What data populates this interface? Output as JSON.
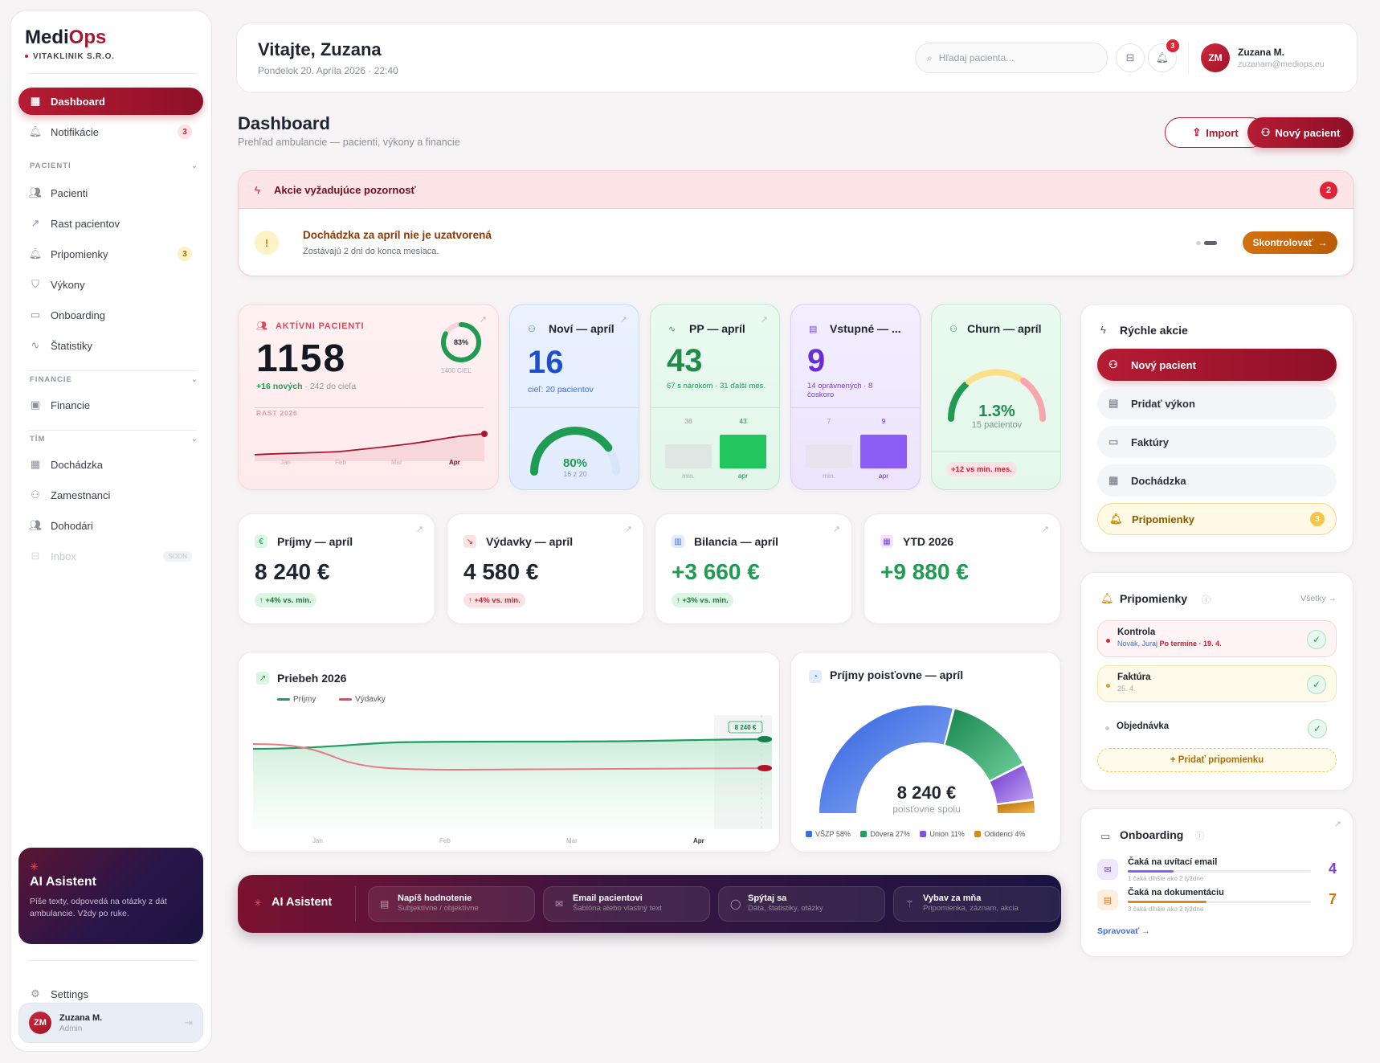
{
  "brand": {
    "name_a": "Medi",
    "name_b": "Ops",
    "org": "VITAKLINIK S.R.O."
  },
  "nav": {
    "dashboard": "Dashboard",
    "notifications": "Notifikácie",
    "notifications_count": "3",
    "sec_patients": "PACIENTI",
    "patients": "Pacienti",
    "growth": "Rast pacientov",
    "reminders": "Pripomienky",
    "reminders_count": "3",
    "services": "Výkony",
    "onboarding": "Onboarding",
    "stats": "Štatistiky",
    "sec_finance": "FINANCIE",
    "finance": "Financie",
    "sec_team": "TÍM",
    "attendance": "Dochádzka",
    "employees": "Zamestnanci",
    "contractors": "Dohodári",
    "inbox": "Inbox",
    "inbox_badge": "SOON",
    "settings": "Settings"
  },
  "ai_side": {
    "title": "AI Asistent",
    "desc": "Píše texty, odpovedá na otázky z dát ambulancie. Vždy po ruke."
  },
  "user": {
    "initials": "ZM",
    "name": "Zuzana M.",
    "role": "Admin",
    "email": "zuzanam@mediops.eu"
  },
  "header": {
    "greeting": "Vitajte, Zuzana",
    "datetime": "Pondelok 20. Apríla 2026 · 22:40",
    "search_placeholder": "Hľadaj pacienta...",
    "bell_count": "3"
  },
  "page": {
    "title": "Dashboard",
    "subtitle": "Prehľad ambulancie — pacienti, výkony a financie",
    "import": "Import",
    "new_patient": "Nový pacient"
  },
  "alert": {
    "title": "Akcie vyžadujúce pozornosť",
    "count": "2",
    "item_title": "Dochádzka za apríl nie je uzatvorená",
    "item_desc": "Zostávajú 2 dni do konca mesiaca.",
    "action": "Skontrolovať"
  },
  "kpi_active": {
    "label": "AKTÍVNI PACIENTI",
    "value": "1158",
    "new": "+16 nových",
    "goal_note": " · 242 do cieľa",
    "ring_pct": "83%",
    "ring_pct_value": 0.83,
    "ring_goal": "1400 CIEĽ",
    "growth_label": "RAST 2026",
    "months": [
      "Jan",
      "Feb",
      "Mar",
      "Apr"
    ]
  },
  "kpi_new": {
    "title": "Noví — apríl",
    "value": "16",
    "sub": "cieľ: 20 pacientov",
    "gauge": "80%",
    "gauge_value": 0.8,
    "gauge_sub": "16 z 20"
  },
  "kpi_pp": {
    "title": "PP — apríl",
    "value": "43",
    "sub": "67 s nárokom · 31 ďalší mes.",
    "bars": [
      {
        "label": "min.",
        "value": "38"
      },
      {
        "label": "apr",
        "value": "43"
      }
    ]
  },
  "kpi_entry": {
    "title": "Vstupné — ...",
    "value": "9",
    "sub": "14 oprávnených · 8 čoskoro",
    "bars": [
      {
        "label": "min.",
        "value": "7"
      },
      {
        "label": "apr",
        "value": "9"
      }
    ]
  },
  "kpi_churn": {
    "title": "Churn — apríl",
    "value": "1.3%",
    "sub": "15 pacientov",
    "pill": "+12 vs min. mes."
  },
  "fin": [
    {
      "title": "Príjmy — apríl",
      "value": "8 240 €",
      "pill": "↑ +4% vs. min.",
      "kind": "g"
    },
    {
      "title": "Výdavky — apríl",
      "value": "4 580 €",
      "pill": "↑ +4% vs. min.",
      "kind": "r"
    },
    {
      "title": "Bilancia — apríl",
      "value": "+3 660 €",
      "pill": "↑ +3% vs. min.",
      "kind": "g"
    },
    {
      "title": "YTD 2026",
      "value": "+9 880 €",
      "pill": "",
      "kind": ""
    }
  ],
  "trend": {
    "title": "Priebeh 2026",
    "legend_income": "Príjmy",
    "legend_expense": "Výdavky",
    "tag": "8 240 €",
    "months": [
      "Jan",
      "Feb",
      "Mar",
      "Apr"
    ]
  },
  "insurers": {
    "title": "Príjmy poisťovne — apríl",
    "total": "8 240 €",
    "total_sub": "poisťovne spolu",
    "legend": [
      {
        "name": "VŠZP 58%",
        "share": 58,
        "color": "#3b6fe0"
      },
      {
        "name": "Dôvera 27%",
        "share": 27,
        "color": "#1f9c62"
      },
      {
        "name": "Union 11%",
        "share": 11,
        "color": "#8a4fe0"
      },
      {
        "name": "Odidenci 4%",
        "share": 4,
        "color": "#d98a10"
      }
    ]
  },
  "ai_bar": {
    "title": "AI Asistent",
    "chips": [
      {
        "t": "Napíš hodnotenie",
        "s": "Subjektívne / objektívne"
      },
      {
        "t": "Email pacientovi",
        "s": "Šablóna alebo vlastný text"
      },
      {
        "t": "Spýtaj sa",
        "s": "Dáta, štatistiky, otázky"
      },
      {
        "t": "Vybav za mňa",
        "s": "Pripomienka, záznam, akcia"
      }
    ]
  },
  "quick": {
    "title": "Rýchle akcie",
    "new_patient": "Nový pacient",
    "add_service": "Pridať výkon",
    "invoices": "Faktúry",
    "attendance": "Dochádzka",
    "reminders": "Pripomienky",
    "reminders_count": "3"
  },
  "reminders": {
    "title": "Pripomienky",
    "all": "Všetky",
    "items": [
      {
        "t": "Kontrola",
        "who": "Novák, Juraj",
        "due": "Po termíne · 19. 4."
      },
      {
        "t": "Faktúra",
        "due": "25. 4."
      },
      {
        "t": "Objednávka"
      }
    ],
    "add": "+ Pridať pripomienku"
  },
  "onboarding": {
    "title": "Onboarding",
    "items": [
      {
        "t": "Čaká na uvítací email",
        "s": "1 čaká dlhšie ako 2 týždne",
        "n": "4",
        "progress": 0.25
      },
      {
        "t": "Čaká na dokumentáciu",
        "s": "3 čaká dlhšie ako 2 týždne",
        "n": "7",
        "progress": 0.43
      }
    ],
    "manage": "Spravovať →"
  },
  "colors": {
    "brand": "#a3182e",
    "green": "#1f9c52",
    "blue": "#2a5bd7",
    "purple": "#7b3fe0"
  }
}
